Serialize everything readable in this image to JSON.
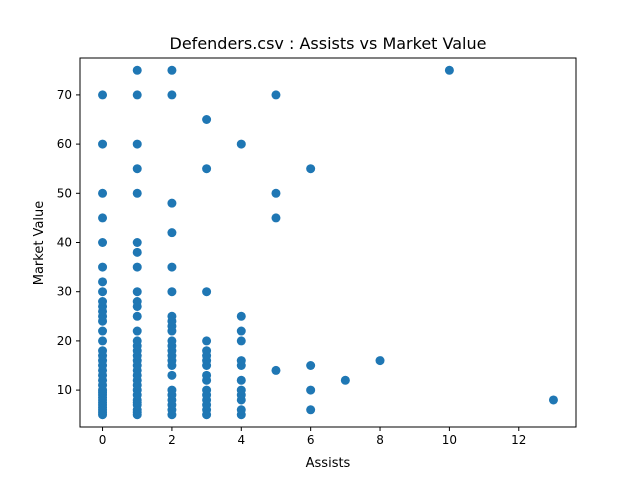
{
  "chart_data": {
    "type": "scatter",
    "title": "Defenders.csv : Assists vs Market Value",
    "xlabel": "Assists",
    "ylabel": "Market Value",
    "xlim": [
      -0.65,
      13.65
    ],
    "ylim": [
      2.5,
      77.5
    ],
    "xticks": [
      0,
      2,
      4,
      6,
      8,
      10,
      12
    ],
    "yticks": [
      10,
      20,
      30,
      40,
      50,
      60,
      70
    ],
    "marker_color": "#1f77b4",
    "series": [
      {
        "name": "Defenders",
        "points": [
          {
            "x": 0,
            "y": 5
          },
          {
            "x": 0,
            "y": 5.5
          },
          {
            "x": 0,
            "y": 6
          },
          {
            "x": 0,
            "y": 6.5
          },
          {
            "x": 0,
            "y": 7
          },
          {
            "x": 0,
            "y": 7.5
          },
          {
            "x": 0,
            "y": 8
          },
          {
            "x": 0,
            "y": 8.5
          },
          {
            "x": 0,
            "y": 9
          },
          {
            "x": 0,
            "y": 9.5
          },
          {
            "x": 0,
            "y": 10
          },
          {
            "x": 0,
            "y": 11
          },
          {
            "x": 0,
            "y": 12
          },
          {
            "x": 0,
            "y": 13
          },
          {
            "x": 0,
            "y": 14
          },
          {
            "x": 0,
            "y": 15
          },
          {
            "x": 0,
            "y": 16
          },
          {
            "x": 0,
            "y": 17
          },
          {
            "x": 0,
            "y": 18
          },
          {
            "x": 0,
            "y": 20
          },
          {
            "x": 0,
            "y": 22
          },
          {
            "x": 0,
            "y": 24
          },
          {
            "x": 0,
            "y": 25
          },
          {
            "x": 0,
            "y": 26
          },
          {
            "x": 0,
            "y": 27
          },
          {
            "x": 0,
            "y": 28
          },
          {
            "x": 0,
            "y": 30
          },
          {
            "x": 0,
            "y": 32
          },
          {
            "x": 0,
            "y": 35
          },
          {
            "x": 0,
            "y": 40
          },
          {
            "x": 0,
            "y": 45
          },
          {
            "x": 0,
            "y": 50
          },
          {
            "x": 0,
            "y": 60
          },
          {
            "x": 0,
            "y": 70
          },
          {
            "x": 1,
            "y": 5
          },
          {
            "x": 1,
            "y": 5.5
          },
          {
            "x": 1,
            "y": 6
          },
          {
            "x": 1,
            "y": 7
          },
          {
            "x": 1,
            "y": 7.5
          },
          {
            "x": 1,
            "y": 8
          },
          {
            "x": 1,
            "y": 9
          },
          {
            "x": 1,
            "y": 10
          },
          {
            "x": 1,
            "y": 11
          },
          {
            "x": 1,
            "y": 12
          },
          {
            "x": 1,
            "y": 13
          },
          {
            "x": 1,
            "y": 14
          },
          {
            "x": 1,
            "y": 15
          },
          {
            "x": 1,
            "y": 16
          },
          {
            "x": 1,
            "y": 17
          },
          {
            "x": 1,
            "y": 18
          },
          {
            "x": 1,
            "y": 19
          },
          {
            "x": 1,
            "y": 20
          },
          {
            "x": 1,
            "y": 22
          },
          {
            "x": 1,
            "y": 25
          },
          {
            "x": 1,
            "y": 27
          },
          {
            "x": 1,
            "y": 28
          },
          {
            "x": 1,
            "y": 30
          },
          {
            "x": 1,
            "y": 35
          },
          {
            "x": 1,
            "y": 38
          },
          {
            "x": 1,
            "y": 40
          },
          {
            "x": 1,
            "y": 50
          },
          {
            "x": 1,
            "y": 55
          },
          {
            "x": 1,
            "y": 60
          },
          {
            "x": 1,
            "y": 70
          },
          {
            "x": 1,
            "y": 75
          },
          {
            "x": 2,
            "y": 5
          },
          {
            "x": 2,
            "y": 6
          },
          {
            "x": 2,
            "y": 7
          },
          {
            "x": 2,
            "y": 8
          },
          {
            "x": 2,
            "y": 9
          },
          {
            "x": 2,
            "y": 10
          },
          {
            "x": 2,
            "y": 13
          },
          {
            "x": 2,
            "y": 15
          },
          {
            "x": 2,
            "y": 16
          },
          {
            "x": 2,
            "y": 17
          },
          {
            "x": 2,
            "y": 18
          },
          {
            "x": 2,
            "y": 19
          },
          {
            "x": 2,
            "y": 20
          },
          {
            "x": 2,
            "y": 22
          },
          {
            "x": 2,
            "y": 23
          },
          {
            "x": 2,
            "y": 24
          },
          {
            "x": 2,
            "y": 25
          },
          {
            "x": 2,
            "y": 30
          },
          {
            "x": 2,
            "y": 35
          },
          {
            "x": 2,
            "y": 42
          },
          {
            "x": 2,
            "y": 48
          },
          {
            "x": 2,
            "y": 70
          },
          {
            "x": 2,
            "y": 75
          },
          {
            "x": 3,
            "y": 5
          },
          {
            "x": 3,
            "y": 6
          },
          {
            "x": 3,
            "y": 7
          },
          {
            "x": 3,
            "y": 8
          },
          {
            "x": 3,
            "y": 9
          },
          {
            "x": 3,
            "y": 10
          },
          {
            "x": 3,
            "y": 12
          },
          {
            "x": 3,
            "y": 13
          },
          {
            "x": 3,
            "y": 15
          },
          {
            "x": 3,
            "y": 16
          },
          {
            "x": 3,
            "y": 17
          },
          {
            "x": 3,
            "y": 18
          },
          {
            "x": 3,
            "y": 20
          },
          {
            "x": 3,
            "y": 30
          },
          {
            "x": 3,
            "y": 55
          },
          {
            "x": 3,
            "y": 65
          },
          {
            "x": 4,
            "y": 5
          },
          {
            "x": 4,
            "y": 6
          },
          {
            "x": 4,
            "y": 8
          },
          {
            "x": 4,
            "y": 9
          },
          {
            "x": 4,
            "y": 10
          },
          {
            "x": 4,
            "y": 12
          },
          {
            "x": 4,
            "y": 15
          },
          {
            "x": 4,
            "y": 16
          },
          {
            "x": 4,
            "y": 20
          },
          {
            "x": 4,
            "y": 22
          },
          {
            "x": 4,
            "y": 25
          },
          {
            "x": 4,
            "y": 60
          },
          {
            "x": 5,
            "y": 14
          },
          {
            "x": 5,
            "y": 45
          },
          {
            "x": 5,
            "y": 50
          },
          {
            "x": 5,
            "y": 70
          },
          {
            "x": 6,
            "y": 6
          },
          {
            "x": 6,
            "y": 10
          },
          {
            "x": 6,
            "y": 15
          },
          {
            "x": 6,
            "y": 55
          },
          {
            "x": 7,
            "y": 12
          },
          {
            "x": 8,
            "y": 16
          },
          {
            "x": 10,
            "y": 75
          },
          {
            "x": 13,
            "y": 8
          }
        ]
      }
    ]
  }
}
